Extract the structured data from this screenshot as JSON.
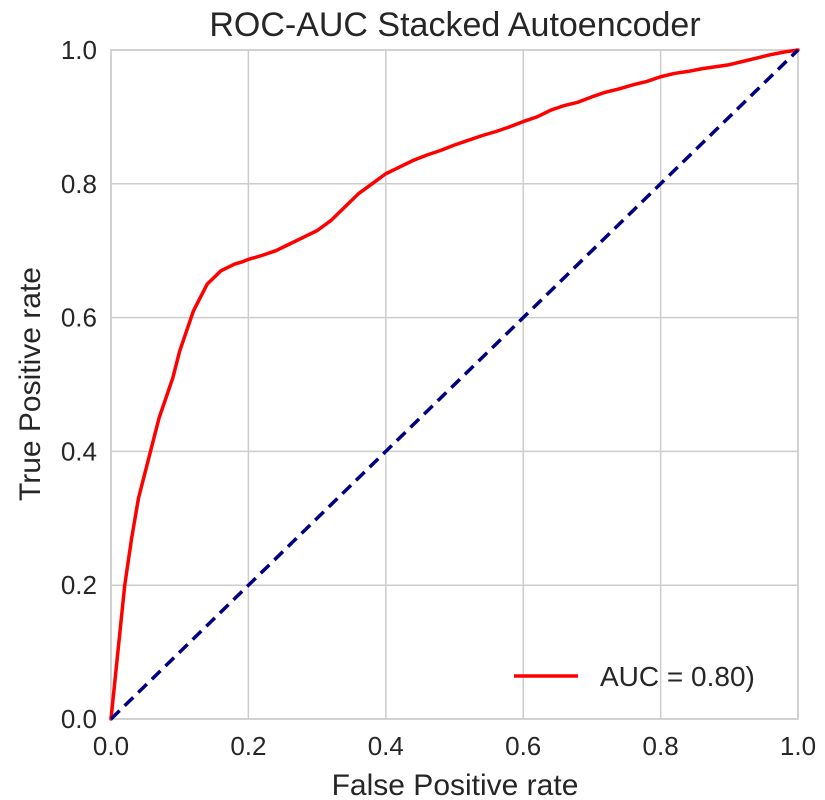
{
  "chart_data": {
    "type": "line",
    "title": "ROC-AUC Stacked Autoencoder",
    "xlabel": "False Positive rate",
    "ylabel": "True Positive rate",
    "xlim": [
      0.0,
      1.0
    ],
    "ylim": [
      0.0,
      1.0
    ],
    "x_ticks": [
      "0.0",
      "0.2",
      "0.4",
      "0.6",
      "0.8",
      "1.0"
    ],
    "y_ticks": [
      "0.0",
      "0.2",
      "0.4",
      "0.6",
      "0.8",
      "1.0"
    ],
    "grid": true,
    "legend_position": "lower-right",
    "series": [
      {
        "name": "AUC = 0.80)",
        "color": "#ff0000",
        "style": "solid",
        "x": [
          0.0,
          0.005,
          0.01,
          0.02,
          0.03,
          0.04,
          0.05,
          0.06,
          0.07,
          0.08,
          0.09,
          0.1,
          0.11,
          0.12,
          0.13,
          0.14,
          0.15,
          0.16,
          0.17,
          0.18,
          0.19,
          0.2,
          0.22,
          0.24,
          0.26,
          0.28,
          0.3,
          0.32,
          0.34,
          0.36,
          0.38,
          0.4,
          0.42,
          0.44,
          0.46,
          0.48,
          0.5,
          0.52,
          0.54,
          0.56,
          0.58,
          0.6,
          0.62,
          0.64,
          0.66,
          0.68,
          0.7,
          0.72,
          0.74,
          0.76,
          0.78,
          0.8,
          0.82,
          0.84,
          0.86,
          0.88,
          0.9,
          0.92,
          0.94,
          0.96,
          0.98,
          1.0
        ],
        "y": [
          0.0,
          0.05,
          0.1,
          0.2,
          0.27,
          0.33,
          0.37,
          0.41,
          0.45,
          0.48,
          0.51,
          0.55,
          0.58,
          0.61,
          0.63,
          0.65,
          0.66,
          0.67,
          0.675,
          0.68,
          0.683,
          0.687,
          0.693,
          0.7,
          0.71,
          0.72,
          0.73,
          0.745,
          0.765,
          0.785,
          0.8,
          0.815,
          0.825,
          0.835,
          0.843,
          0.85,
          0.858,
          0.865,
          0.872,
          0.878,
          0.885,
          0.893,
          0.9,
          0.91,
          0.917,
          0.922,
          0.93,
          0.937,
          0.942,
          0.948,
          0.953,
          0.96,
          0.965,
          0.968,
          0.972,
          0.975,
          0.978,
          0.983,
          0.988,
          0.993,
          0.997,
          1.0
        ]
      },
      {
        "name": "",
        "color": "#000080",
        "style": "dashed",
        "x": [
          0.0,
          1.0
        ],
        "y": [
          0.0,
          1.0
        ]
      }
    ]
  }
}
